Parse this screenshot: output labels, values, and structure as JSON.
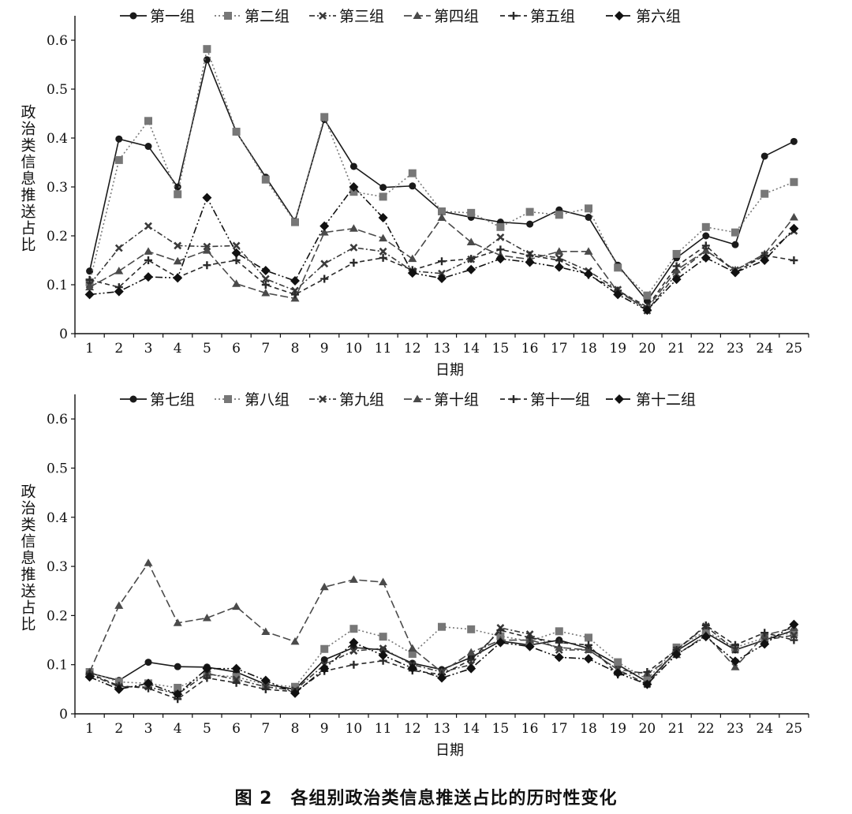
{
  "figure": {
    "caption": "图 2　各组别政治类信息推送占比的历时性变化"
  },
  "chart_data": [
    {
      "type": "line",
      "xlabel": "日期",
      "ylabel": "政治类信息推送占比",
      "xlim": [
        1,
        25
      ],
      "ylim": [
        0,
        0.65
      ],
      "yticks": [
        0,
        0.1,
        0.2,
        0.3,
        0.4,
        0.5,
        0.6
      ],
      "ytick_labels": [
        "0",
        "0.1",
        "0.2",
        "0.3",
        "0.4",
        "0.5",
        "0.6"
      ],
      "grid": false,
      "legend_placement": "top",
      "x": [
        1,
        2,
        3,
        4,
        5,
        6,
        7,
        8,
        9,
        10,
        11,
        12,
        13,
        14,
        15,
        16,
        17,
        18,
        19,
        20,
        21,
        22,
        23,
        24,
        25
      ],
      "series": [
        {
          "name": "第一组",
          "marker": "circle",
          "dash": "solid",
          "color": "#1a1a1a",
          "values": [
            0.128,
            0.398,
            0.383,
            0.3,
            0.56,
            0.412,
            0.32,
            0.23,
            0.438,
            0.342,
            0.299,
            0.302,
            0.25,
            0.238,
            0.228,
            0.224,
            0.253,
            0.238,
            0.14,
            0.067,
            0.155,
            0.2,
            0.182,
            0.363,
            0.393
          ]
        },
        {
          "name": "第二组",
          "marker": "square",
          "dash": "dot",
          "color": "#777777",
          "values": [
            0.105,
            0.355,
            0.435,
            0.285,
            0.582,
            0.413,
            0.315,
            0.228,
            0.443,
            0.29,
            0.28,
            0.328,
            0.25,
            0.247,
            0.218,
            0.249,
            0.243,
            0.256,
            0.135,
            0.078,
            0.163,
            0.218,
            0.207,
            0.286,
            0.31
          ]
        },
        {
          "name": "第三组",
          "marker": "x",
          "dash": "dashdot",
          "color": "#3a3a3a",
          "values": [
            0.1,
            0.175,
            0.22,
            0.18,
            0.178,
            0.18,
            0.112,
            0.088,
            0.143,
            0.176,
            0.168,
            0.128,
            0.123,
            0.152,
            0.197,
            0.163,
            0.155,
            0.128,
            0.09,
            0.047,
            0.122,
            0.17,
            0.13,
            0.16,
            0.21
          ]
        },
        {
          "name": "第四组",
          "marker": "triangle",
          "dash": "longdash",
          "color": "#4a4a4a",
          "values": [
            0.095,
            0.128,
            0.168,
            0.148,
            0.17,
            0.102,
            0.083,
            0.072,
            0.207,
            0.215,
            0.195,
            0.153,
            0.237,
            0.187,
            0.16,
            0.152,
            0.168,
            0.168,
            0.085,
            0.052,
            0.13,
            0.17,
            0.13,
            0.163,
            0.238
          ]
        },
        {
          "name": "第五组",
          "marker": "plus",
          "dash": "dash",
          "color": "#2a2a2a",
          "values": [
            0.11,
            0.095,
            0.15,
            0.115,
            0.14,
            0.15,
            0.1,
            0.08,
            0.112,
            0.145,
            0.155,
            0.13,
            0.148,
            0.153,
            0.172,
            0.16,
            0.15,
            0.12,
            0.088,
            0.055,
            0.138,
            0.18,
            0.125,
            0.16,
            0.15
          ]
        },
        {
          "name": "第六组",
          "marker": "diamond",
          "dash": "dashdot2",
          "color": "#111111",
          "values": [
            0.08,
            0.086,
            0.116,
            0.114,
            0.278,
            0.165,
            0.129,
            0.108,
            0.22,
            0.3,
            0.237,
            0.124,
            0.113,
            0.131,
            0.153,
            0.146,
            0.136,
            0.122,
            0.08,
            0.048,
            0.111,
            0.155,
            0.125,
            0.15,
            0.215
          ]
        }
      ]
    },
    {
      "type": "line",
      "xlabel": "日期",
      "ylabel": "政治类信息推送占比",
      "xlim": [
        1,
        25
      ],
      "ylim": [
        0,
        0.65
      ],
      "yticks": [
        0,
        0.1,
        0.2,
        0.3,
        0.4,
        0.5,
        0.6
      ],
      "ytick_labels": [
        "0",
        "0.1",
        "0.2",
        "0.3",
        "0.4",
        "0.5",
        "0.6"
      ],
      "grid": false,
      "legend_placement": "top",
      "x": [
        1,
        2,
        3,
        4,
        5,
        6,
        7,
        8,
        9,
        10,
        11,
        12,
        13,
        14,
        15,
        16,
        17,
        18,
        19,
        20,
        21,
        22,
        23,
        24,
        25
      ],
      "series": [
        {
          "name": "第七组",
          "marker": "circle",
          "dash": "solid",
          "color": "#1a1a1a",
          "values": [
            0.083,
            0.068,
            0.105,
            0.096,
            0.095,
            0.085,
            0.06,
            0.05,
            0.11,
            0.135,
            0.13,
            0.103,
            0.09,
            0.115,
            0.148,
            0.14,
            0.15,
            0.133,
            0.1,
            0.065,
            0.128,
            0.165,
            0.13,
            0.15,
            0.17
          ]
        },
        {
          "name": "第八组",
          "marker": "square",
          "dash": "dot",
          "color": "#777777",
          "values": [
            0.085,
            0.065,
            0.062,
            0.053,
            0.08,
            0.075,
            0.06,
            0.055,
            0.132,
            0.173,
            0.157,
            0.122,
            0.177,
            0.172,
            0.158,
            0.148,
            0.168,
            0.155,
            0.105,
            0.07,
            0.135,
            0.168,
            0.135,
            0.155,
            0.165
          ]
        },
        {
          "name": "第九组",
          "marker": "x",
          "dash": "dashdot",
          "color": "#3a3a3a",
          "values": [
            0.08,
            0.055,
            0.055,
            0.04,
            0.082,
            0.07,
            0.055,
            0.048,
            0.1,
            0.128,
            0.133,
            0.1,
            0.085,
            0.1,
            0.175,
            0.162,
            0.13,
            0.13,
            0.09,
            0.06,
            0.13,
            0.178,
            0.13,
            0.15,
            0.16
          ]
        },
        {
          "name": "第十组",
          "marker": "triangle",
          "dash": "longdash",
          "color": "#4a4a4a",
          "values": [
            0.085,
            0.22,
            0.307,
            0.185,
            0.195,
            0.218,
            0.167,
            0.147,
            0.258,
            0.273,
            0.268,
            0.133,
            0.085,
            0.125,
            0.15,
            0.15,
            0.135,
            0.13,
            0.09,
            0.082,
            0.12,
            0.16,
            0.095,
            0.16,
            0.175
          ]
        },
        {
          "name": "第十一组",
          "marker": "plus",
          "dash": "dash",
          "color": "#2a2a2a",
          "values": [
            0.082,
            0.057,
            0.052,
            0.03,
            0.073,
            0.063,
            0.05,
            0.045,
            0.087,
            0.1,
            0.108,
            0.088,
            0.08,
            0.11,
            0.17,
            0.155,
            0.145,
            0.14,
            0.08,
            0.085,
            0.13,
            0.18,
            0.14,
            0.165,
            0.15
          ]
        },
        {
          "name": "第十二组",
          "marker": "diamond",
          "dash": "dashdot2",
          "color": "#111111",
          "values": [
            0.075,
            0.05,
            0.062,
            0.04,
            0.092,
            0.092,
            0.068,
            0.042,
            0.092,
            0.145,
            0.119,
            0.093,
            0.073,
            0.092,
            0.145,
            0.137,
            0.115,
            0.112,
            0.083,
            0.06,
            0.121,
            0.157,
            0.107,
            0.142,
            0.182
          ]
        }
      ]
    }
  ]
}
